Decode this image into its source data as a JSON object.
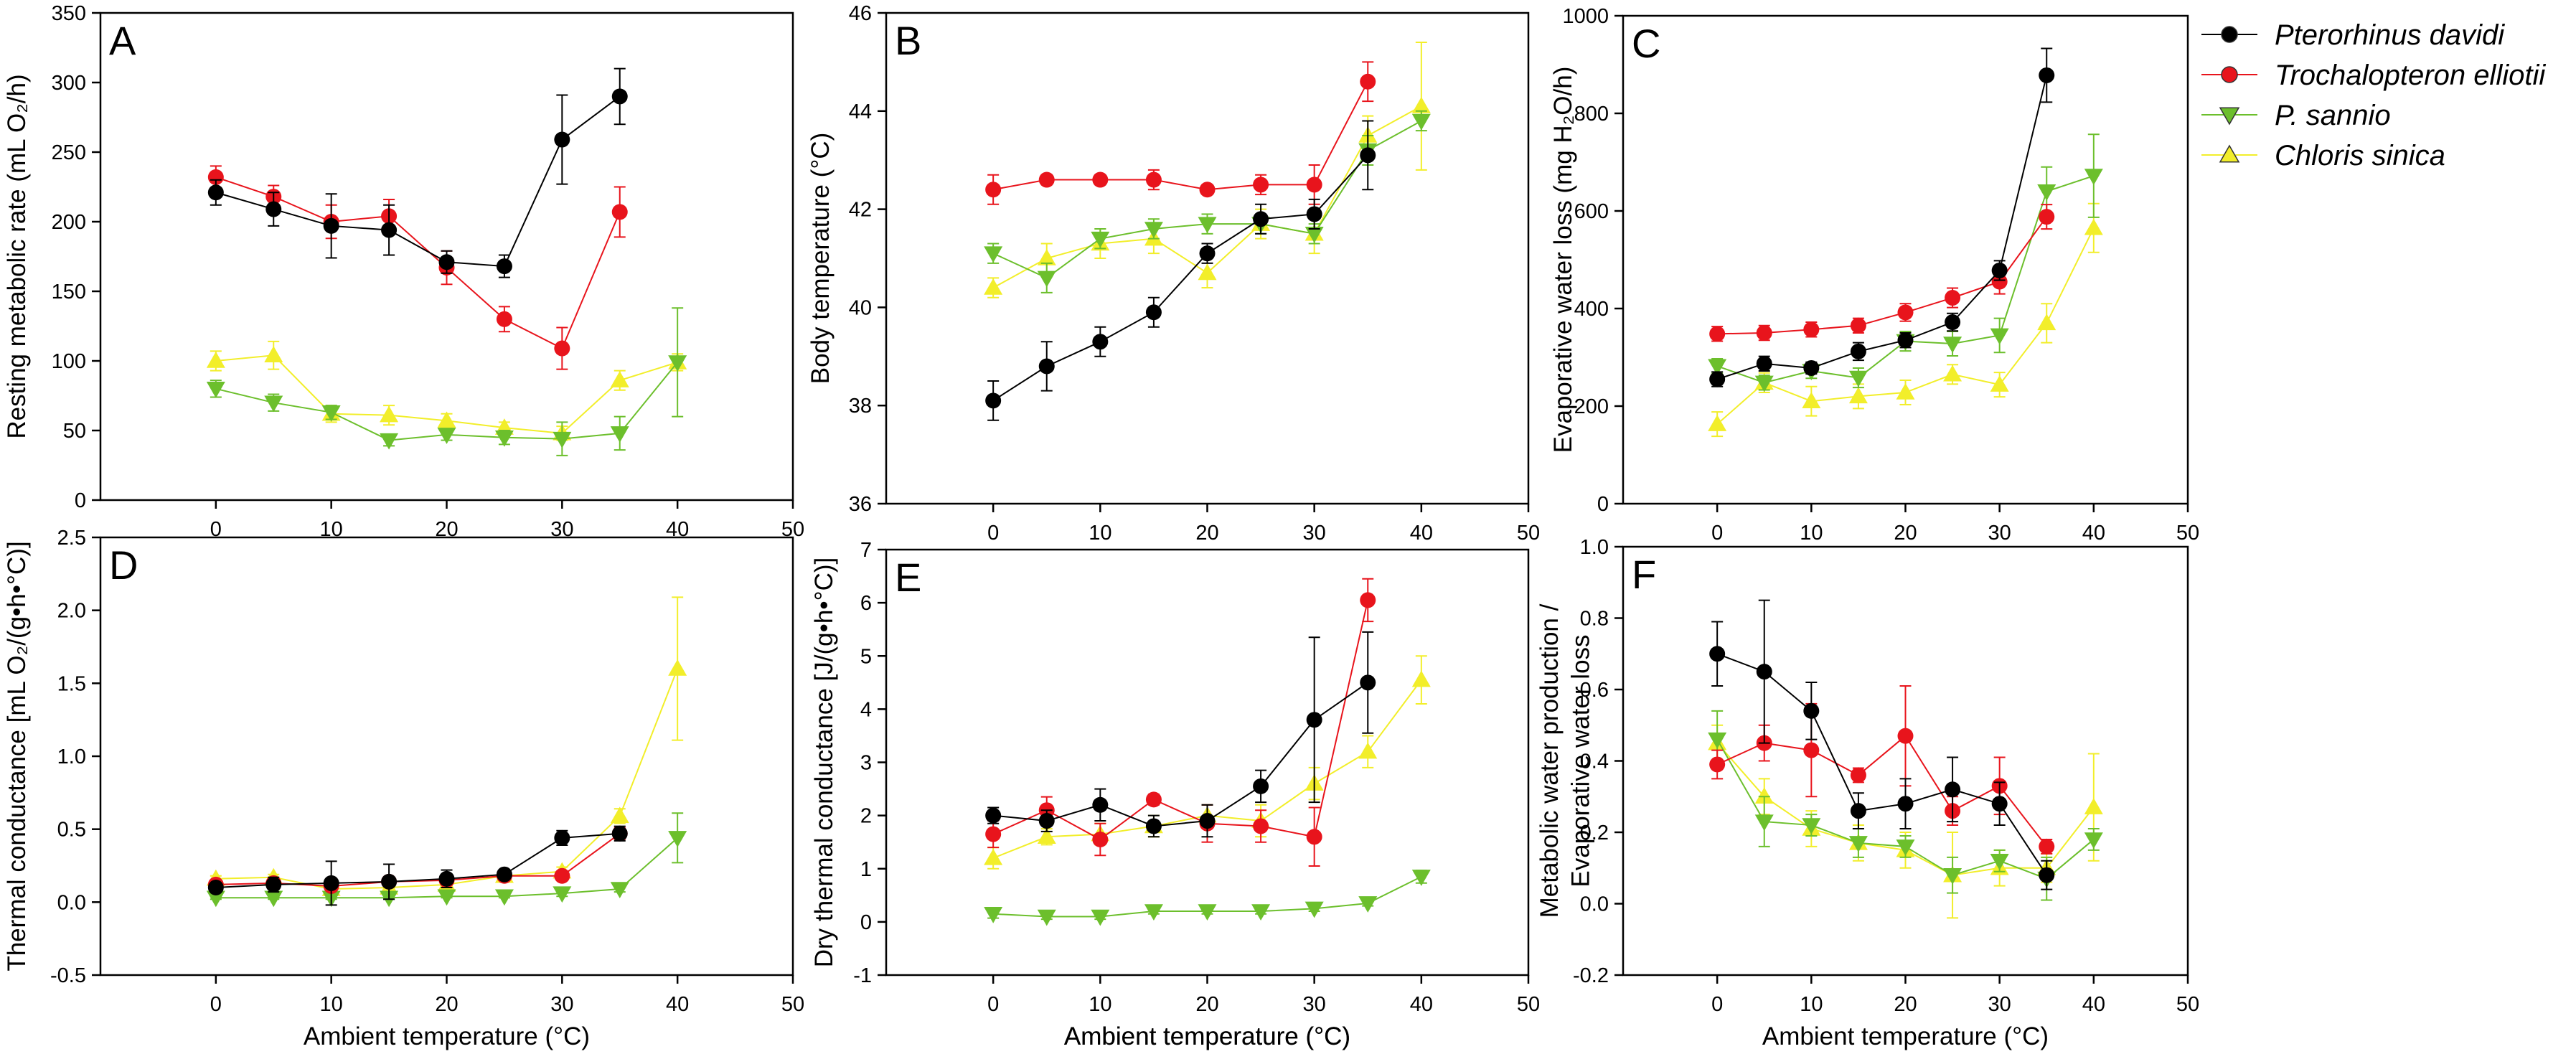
{
  "legend": {
    "entries": [
      {
        "name": "Pterorhinus davidi",
        "color": "#000000",
        "marker": "circle"
      },
      {
        "name": "Trochalopteron elliotii",
        "color": "#e8141c",
        "marker": "circle"
      },
      {
        "name": "P. sannio",
        "color": "#6cbf2c",
        "marker": "triangle-down"
      },
      {
        "name": "Chloris sinica",
        "color": "#f2ee2a",
        "marker": "triangle-up"
      }
    ]
  },
  "chart_data": [
    {
      "panel": "A",
      "type": "line",
      "xlabel": "",
      "ylabel": "Resting metabolic rate (mL O₂/h)",
      "xlim": [
        -10,
        50
      ],
      "ylim": [
        0,
        350
      ],
      "xticks": [
        0,
        10,
        20,
        30,
        40,
        50
      ],
      "yticks": [
        0,
        50,
        100,
        150,
        200,
        250,
        300,
        350
      ],
      "series": [
        {
          "name": "Pterorhinus davidi",
          "x": [
            0,
            5,
            10,
            15,
            20,
            25,
            30,
            35
          ],
          "y": [
            221,
            209,
            197,
            194,
            171,
            168,
            259,
            290
          ],
          "err": [
            9,
            12,
            23,
            18,
            8,
            8,
            32,
            20
          ]
        },
        {
          "name": "Trochalopteron elliotii",
          "x": [
            0,
            5,
            10,
            15,
            20,
            25,
            30,
            35
          ],
          "y": [
            232,
            218,
            200,
            204,
            167,
            130,
            109,
            207
          ],
          "err": [
            8,
            8,
            12,
            12,
            12,
            9,
            15,
            18
          ]
        },
        {
          "name": "P. sannio",
          "x": [
            0,
            5,
            10,
            15,
            20,
            25,
            30,
            35,
            40
          ],
          "y": [
            80,
            70,
            63,
            43,
            47,
            45,
            44,
            48,
            99
          ],
          "err": [
            6,
            6,
            5,
            4,
            4,
            5,
            12,
            12,
            39
          ]
        },
        {
          "name": "Chloris sinica",
          "x": [
            0,
            5,
            10,
            15,
            20,
            25,
            30,
            35,
            40
          ],
          "y": [
            100,
            104,
            62,
            61,
            57,
            52,
            48,
            86,
            99
          ],
          "err": [
            7,
            10,
            6,
            7,
            5,
            4,
            5,
            7,
            6
          ]
        }
      ]
    },
    {
      "panel": "B",
      "type": "line",
      "xlabel": "Ambient temperature (°C)",
      "ylabel": "Body temperature (°C)",
      "xlim": [
        -10,
        50
      ],
      "ylim": [
        36,
        46
      ],
      "xticks": [
        0,
        10,
        20,
        30,
        40,
        50
      ],
      "yticks": [
        36,
        38,
        40,
        42,
        44,
        46
      ],
      "series": [
        {
          "name": "Pterorhinus davidi",
          "x": [
            0,
            5,
            10,
            15,
            20,
            25,
            30,
            35
          ],
          "y": [
            38.1,
            38.8,
            39.3,
            39.9,
            41.1,
            41.8,
            41.9,
            43.1
          ],
          "err": [
            0.4,
            0.5,
            0.3,
            0.3,
            0.2,
            0.3,
            0.3,
            0.7
          ]
        },
        {
          "name": "Trochalopteron elliotii",
          "x": [
            0,
            5,
            10,
            15,
            20,
            25,
            30,
            35
          ],
          "y": [
            42.4,
            42.6,
            42.6,
            42.6,
            42.4,
            42.5,
            42.5,
            44.6
          ],
          "err": [
            0.3,
            0.1,
            0.1,
            0.2,
            0.1,
            0.2,
            0.4,
            0.4
          ]
        },
        {
          "name": "P. sannio",
          "x": [
            0,
            5,
            10,
            15,
            20,
            25,
            30,
            35,
            40
          ],
          "y": [
            41.1,
            40.6,
            41.4,
            41.6,
            41.7,
            41.7,
            41.5,
            43.2,
            43.8
          ],
          "err": [
            0.2,
            0.3,
            0.2,
            0.2,
            0.2,
            0.2,
            0.2,
            0.3,
            0.2
          ]
        },
        {
          "name": "Chloris sinica",
          "x": [
            0,
            5,
            10,
            15,
            20,
            25,
            30,
            35,
            40
          ],
          "y": [
            40.4,
            41.0,
            41.3,
            41.4,
            40.7,
            41.7,
            41.5,
            43.5,
            44.1
          ],
          "err": [
            0.2,
            0.3,
            0.3,
            0.3,
            0.3,
            0.3,
            0.4,
            0.4,
            1.3
          ]
        }
      ]
    },
    {
      "panel": "C",
      "type": "line",
      "xlabel": "",
      "ylabel": "Evaporative water loss (mg H₂O/h)",
      "xlim": [
        -10,
        50
      ],
      "ylim": [
        0,
        1000
      ],
      "xticks": [
        0,
        10,
        20,
        30,
        40,
        50
      ],
      "yticks": [
        0,
        200,
        400,
        600,
        800,
        1000
      ],
      "series": [
        {
          "name": "Pterorhinus davidi",
          "x": [
            0,
            5,
            10,
            15,
            20,
            25,
            30,
            35
          ],
          "y": [
            255,
            287,
            278,
            312,
            335,
            372,
            478,
            878
          ],
          "err": [
            15,
            15,
            12,
            18,
            15,
            18,
            20,
            55
          ]
        },
        {
          "name": "Trochalopteron elliotii",
          "x": [
            0,
            5,
            10,
            15,
            20,
            25,
            30,
            35
          ],
          "y": [
            348,
            350,
            357,
            365,
            392,
            422,
            455,
            588
          ],
          "err": [
            15,
            15,
            15,
            15,
            18,
            20,
            25,
            25
          ]
        },
        {
          "name": "P. sannio",
          "x": [
            0,
            5,
            10,
            15,
            20,
            25,
            30,
            35,
            40
          ],
          "y": [
            282,
            248,
            272,
            258,
            333,
            328,
            345,
            640,
            672
          ],
          "err": [
            15,
            15,
            15,
            20,
            20,
            25,
            35,
            50,
            85
          ]
        },
        {
          "name": "Chloris sinica",
          "x": [
            0,
            5,
            10,
            15,
            20,
            25,
            30,
            35,
            40
          ],
          "y": [
            163,
            248,
            210,
            220,
            228,
            265,
            244,
            370,
            565
          ],
          "err": [
            25,
            20,
            30,
            25,
            25,
            20,
            25,
            40,
            50
          ]
        }
      ]
    },
    {
      "panel": "D",
      "type": "line",
      "xlabel": "Ambient temperature (°C)",
      "ylabel": "Thermal conductance [mL O₂/(g•h•°C)]",
      "xlim": [
        -10,
        50
      ],
      "ylim": [
        -0.5,
        2.5
      ],
      "xticks": [
        0,
        10,
        20,
        30,
        40,
        50
      ],
      "yticks": [
        -0.5,
        0.0,
        0.5,
        1.0,
        1.5,
        2.0,
        2.5
      ],
      "series": [
        {
          "name": "Pterorhinus davidi",
          "x": [
            0,
            5,
            10,
            15,
            20,
            25,
            30,
            35
          ],
          "y": [
            0.1,
            0.12,
            0.13,
            0.14,
            0.16,
            0.19,
            0.44,
            0.47
          ],
          "err": [
            0.03,
            0.05,
            0.15,
            0.12,
            0.06,
            0.03,
            0.05,
            0.05
          ]
        },
        {
          "name": "Trochalopteron elliotii",
          "x": [
            0,
            5,
            10,
            15,
            20,
            25,
            30,
            35
          ],
          "y": [
            0.12,
            0.13,
            0.11,
            0.14,
            0.15,
            0.18,
            0.18,
            0.47
          ],
          "err": [
            0.02,
            0.02,
            0.02,
            0.02,
            0.02,
            0.02,
            0.03,
            0.04
          ]
        },
        {
          "name": "P. sannio",
          "x": [
            0,
            5,
            10,
            15,
            20,
            25,
            30,
            35,
            40
          ],
          "y": [
            0.03,
            0.03,
            0.03,
            0.03,
            0.04,
            0.04,
            0.06,
            0.09,
            0.44
          ],
          "err": [
            0.01,
            0.01,
            0.01,
            0.01,
            0.01,
            0.01,
            0.02,
            0.02,
            0.17
          ]
        },
        {
          "name": "Chloris sinica",
          "x": [
            0,
            5,
            10,
            15,
            20,
            25,
            30,
            35,
            40
          ],
          "y": [
            0.16,
            0.17,
            0.09,
            0.1,
            0.12,
            0.18,
            0.21,
            0.59,
            1.6
          ],
          "err": [
            0.02,
            0.02,
            0.02,
            0.02,
            0.02,
            0.02,
            0.03,
            0.05,
            0.49
          ]
        }
      ]
    },
    {
      "panel": "E",
      "type": "line",
      "xlabel": "Ambient temperature (°C)",
      "ylabel": "Dry thermal conductance [J/(g•h•°C)]",
      "xlim": [
        -10,
        50
      ],
      "ylim": [
        -1,
        7
      ],
      "xticks": [
        0,
        10,
        20,
        30,
        40,
        50
      ],
      "yticks": [
        -1,
        0,
        1,
        2,
        3,
        4,
        5,
        6,
        7
      ],
      "series": [
        {
          "name": "Pterorhinus davidi",
          "x": [
            0,
            5,
            10,
            15,
            20,
            25,
            30,
            35
          ],
          "y": [
            2.0,
            1.9,
            2.2,
            1.8,
            1.9,
            2.55,
            3.8,
            4.5
          ],
          "err": [
            0.15,
            0.2,
            0.3,
            0.2,
            0.3,
            0.3,
            1.55,
            0.95
          ]
        },
        {
          "name": "Trochalopteron elliotii",
          "x": [
            0,
            5,
            10,
            15,
            20,
            25,
            30,
            35
          ],
          "y": [
            1.65,
            2.1,
            1.55,
            2.3,
            1.85,
            1.8,
            1.6,
            6.05
          ],
          "err": [
            0.25,
            0.25,
            0.3,
            0.1,
            0.35,
            0.3,
            0.55,
            0.4
          ]
        },
        {
          "name": "P. sannio",
          "x": [
            0,
            5,
            10,
            15,
            20,
            25,
            30,
            35,
            40
          ],
          "y": [
            0.15,
            0.1,
            0.1,
            0.2,
            0.2,
            0.2,
            0.25,
            0.35,
            0.85
          ],
          "err": [
            0.08,
            0.05,
            0.05,
            0.05,
            0.05,
            0.05,
            0.05,
            0.05,
            0.12
          ]
        },
        {
          "name": "Chloris sinica",
          "x": [
            0,
            5,
            10,
            15,
            20,
            25,
            30,
            35,
            40
          ],
          "y": [
            1.2,
            1.6,
            1.65,
            1.8,
            2.0,
            1.9,
            2.6,
            3.2,
            4.55
          ],
          "err": [
            0.2,
            0.15,
            0.2,
            0.2,
            0.2,
            0.3,
            0.3,
            0.3,
            0.45
          ]
        }
      ]
    },
    {
      "panel": "F",
      "type": "line",
      "xlabel": "Ambient temperature (°C)",
      "ylabel": "Metabolic water production / Evaporative water loss",
      "xlim": [
        -10,
        50
      ],
      "ylim": [
        -0.2,
        1.0
      ],
      "xticks": [
        0,
        10,
        20,
        30,
        40,
        50
      ],
      "yticks": [
        -0.2,
        0.0,
        0.2,
        0.4,
        0.6,
        0.8,
        1.0
      ],
      "series": [
        {
          "name": "Pterorhinus davidi",
          "x": [
            0,
            5,
            10,
            15,
            20,
            25,
            30,
            35
          ],
          "y": [
            0.7,
            0.65,
            0.54,
            0.26,
            0.28,
            0.32,
            0.28,
            0.08
          ],
          "err": [
            0.09,
            0.2,
            0.08,
            0.05,
            0.07,
            0.09,
            0.06,
            0.04
          ]
        },
        {
          "name": "Trochalopteron elliotii",
          "x": [
            0,
            5,
            10,
            15,
            20,
            25,
            30,
            35
          ],
          "y": [
            0.39,
            0.45,
            0.43,
            0.36,
            0.47,
            0.26,
            0.33,
            0.16
          ],
          "err": [
            0.04,
            0.05,
            0.13,
            0.02,
            0.14,
            0.04,
            0.08,
            0.02
          ]
        },
        {
          "name": "P. sannio",
          "x": [
            0,
            5,
            10,
            15,
            20,
            25,
            30,
            35,
            40
          ],
          "y": [
            0.46,
            0.23,
            0.22,
            0.17,
            0.16,
            0.08,
            0.12,
            0.07,
            0.18
          ],
          "err": [
            0.08,
            0.07,
            0.03,
            0.04,
            0.03,
            0.05,
            0.03,
            0.06,
            0.03
          ]
        },
        {
          "name": "Chloris sinica",
          "x": [
            0,
            5,
            10,
            15,
            20,
            25,
            30,
            35,
            40
          ],
          "y": [
            0.45,
            0.3,
            0.21,
            0.17,
            0.15,
            0.08,
            0.1,
            0.1,
            0.27
          ],
          "err": [
            0.05,
            0.05,
            0.05,
            0.05,
            0.05,
            0.12,
            0.05,
            0.04,
            0.15
          ]
        }
      ]
    }
  ]
}
